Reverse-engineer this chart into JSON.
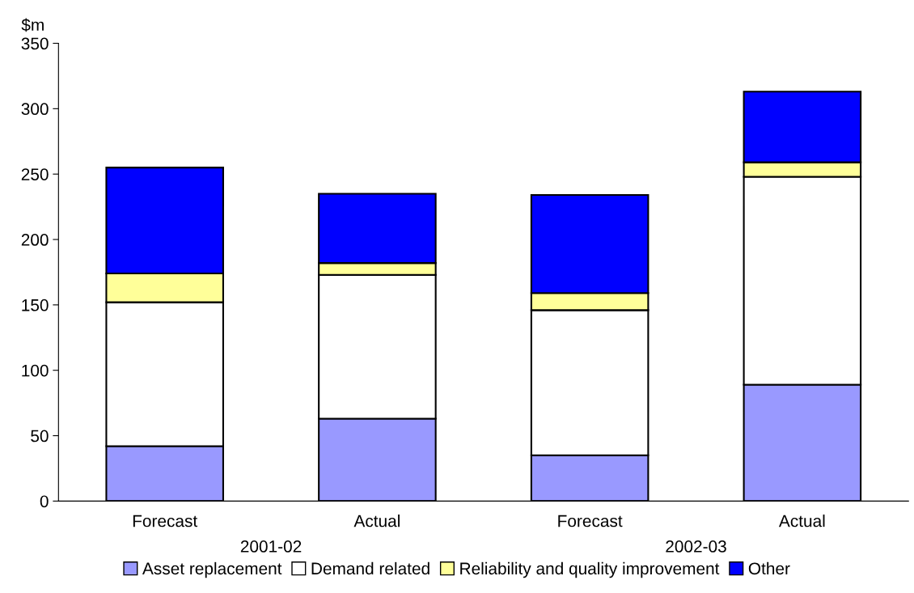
{
  "chart_data": {
    "type": "bar",
    "stacked": true,
    "ylabel": "$m",
    "categories": [
      "Forecast",
      "Actual",
      "Forecast",
      "Actual"
    ],
    "series": [
      {
        "name": "Asset replacement",
        "color": "#9999ff",
        "values": [
          42,
          63,
          35,
          89
        ]
      },
      {
        "name": "Demand related",
        "color": "#ffffff",
        "values": [
          110,
          110,
          111,
          159
        ]
      },
      {
        "name": "Reliability and quality improvement",
        "color": "#ffff99",
        "values": [
          22,
          9,
          13,
          11
        ]
      },
      {
        "name": "Other",
        "color": "#0000ff",
        "values": [
          81,
          53,
          75,
          54
        ]
      }
    ],
    "annotations": [
      "2001-02",
      "2002-03"
    ],
    "ylim": [
      0,
      350
    ],
    "yticks": [
      0,
      50,
      100,
      150,
      200,
      250,
      300,
      350
    ],
    "grid": false,
    "legend": "bottom"
  }
}
